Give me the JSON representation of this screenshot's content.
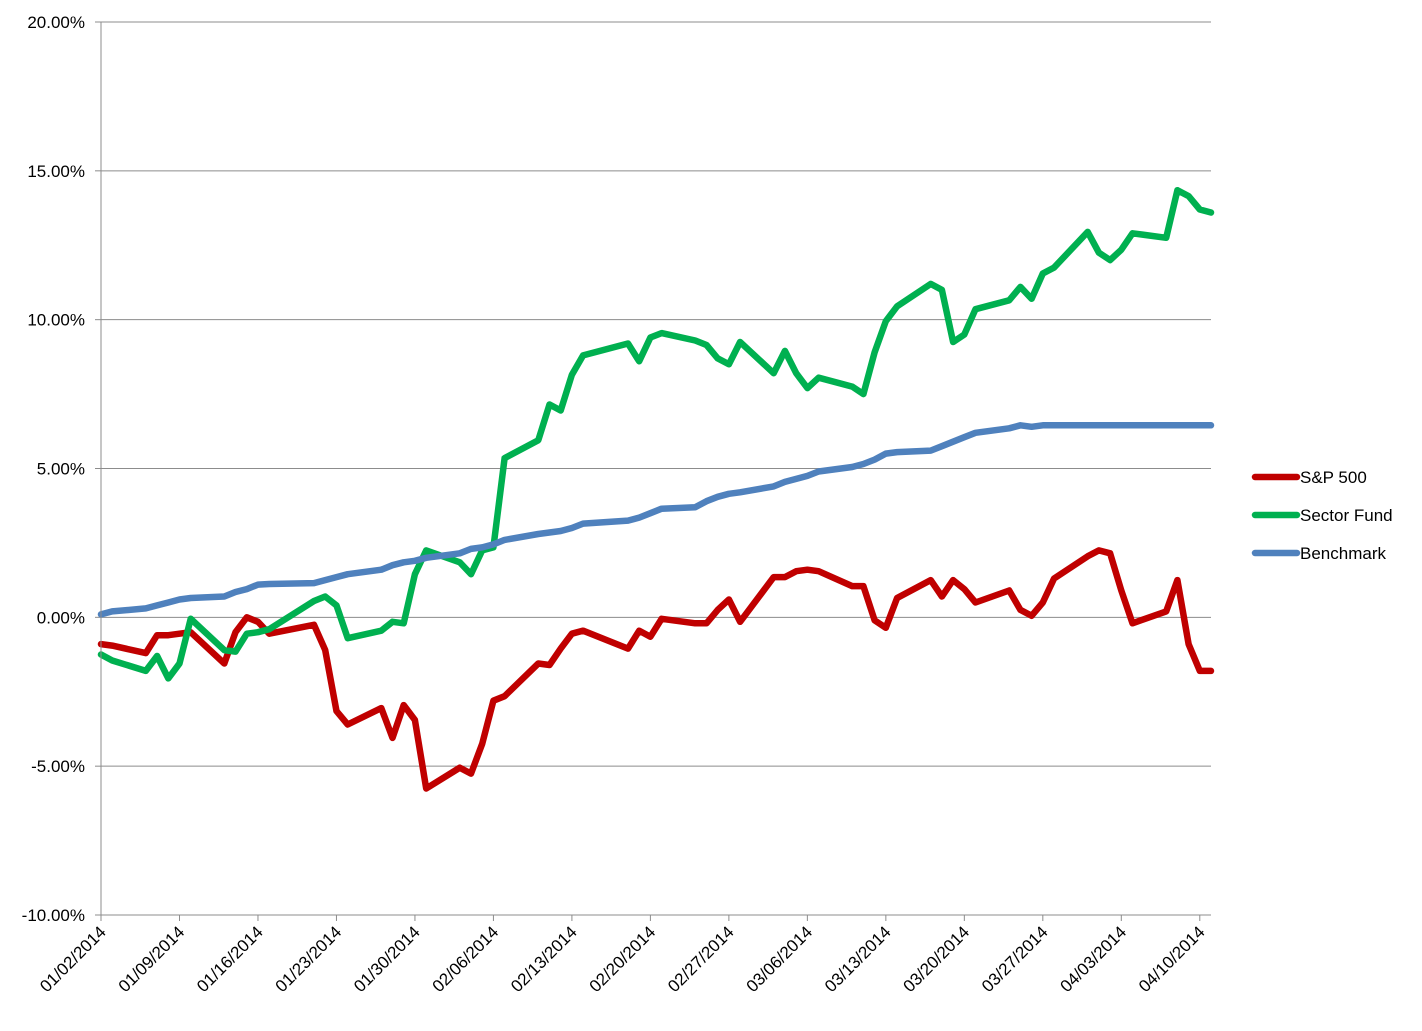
{
  "chart_data": {
    "type": "line",
    "title": "",
    "xlabel": "",
    "ylabel": "",
    "ylim": [
      -0.1,
      0.2
    ],
    "yticks": [
      -0.1,
      -0.05,
      0.0,
      0.05,
      0.1,
      0.15,
      0.2
    ],
    "ytick_labels": [
      "-10.00%",
      "-5.00%",
      "0.00%",
      "5.00%",
      "10.00%",
      "15.00%",
      "20.00%"
    ],
    "xlim": [
      "2014-01-02",
      "2014-04-11"
    ],
    "xtick_dates": [
      "2014-01-02",
      "2014-01-09",
      "2014-01-16",
      "2014-01-23",
      "2014-01-30",
      "2014-02-06",
      "2014-02-13",
      "2014-02-20",
      "2014-02-27",
      "2014-03-06",
      "2014-03-13",
      "2014-03-20",
      "2014-03-27",
      "2014-04-03",
      "2014-04-10"
    ],
    "xtick_labels": [
      "01/02/2014",
      "01/09/2014",
      "01/16/2014",
      "01/23/2014",
      "01/30/2014",
      "02/06/2014",
      "02/13/2014",
      "02/20/2014",
      "02/27/2014",
      "03/06/2014",
      "03/13/2014",
      "03/20/2014",
      "03/27/2014",
      "04/03/2014",
      "04/10/2014"
    ],
    "grid": "horizontal",
    "legend_position": "right",
    "dates": [
      "2014-01-02",
      "2014-01-03",
      "2014-01-06",
      "2014-01-07",
      "2014-01-08",
      "2014-01-09",
      "2014-01-10",
      "2014-01-13",
      "2014-01-14",
      "2014-01-15",
      "2014-01-16",
      "2014-01-17",
      "2014-01-21",
      "2014-01-22",
      "2014-01-23",
      "2014-01-24",
      "2014-01-27",
      "2014-01-28",
      "2014-01-29",
      "2014-01-30",
      "2014-01-31",
      "2014-02-03",
      "2014-02-04",
      "2014-02-05",
      "2014-02-06",
      "2014-02-07",
      "2014-02-10",
      "2014-02-11",
      "2014-02-12",
      "2014-02-13",
      "2014-02-14",
      "2014-02-18",
      "2014-02-19",
      "2014-02-20",
      "2014-02-21",
      "2014-02-24",
      "2014-02-25",
      "2014-02-26",
      "2014-02-27",
      "2014-02-28",
      "2014-03-03",
      "2014-03-04",
      "2014-03-05",
      "2014-03-06",
      "2014-03-07",
      "2014-03-10",
      "2014-03-11",
      "2014-03-12",
      "2014-03-13",
      "2014-03-14",
      "2014-03-17",
      "2014-03-18",
      "2014-03-19",
      "2014-03-20",
      "2014-03-21",
      "2014-03-24",
      "2014-03-25",
      "2014-03-26",
      "2014-03-27",
      "2014-03-28",
      "2014-03-31",
      "2014-04-01",
      "2014-04-02",
      "2014-04-03",
      "2014-04-04",
      "2014-04-07",
      "2014-04-08",
      "2014-04-09",
      "2014-04-10",
      "2014-04-11"
    ],
    "series": [
      {
        "name": "S&P 500",
        "color": "#c00000",
        "values": [
          -0.009,
          -0.0095,
          -0.012,
          -0.006,
          -0.006,
          -0.0055,
          -0.005,
          -0.0155,
          -0.005,
          0.0,
          -0.0015,
          -0.0055,
          -0.0025,
          -0.011,
          -0.0315,
          -0.036,
          -0.0305,
          -0.0405,
          -0.0295,
          -0.0345,
          -0.0575,
          -0.0505,
          -0.0525,
          -0.0425,
          -0.028,
          -0.0265,
          -0.0155,
          -0.016,
          -0.0105,
          -0.0055,
          -0.0045,
          -0.0105,
          -0.0045,
          -0.0065,
          -0.0005,
          -0.002,
          -0.002,
          0.0025,
          0.006,
          -0.0015,
          0.0135,
          0.0135,
          0.0155,
          0.016,
          0.0155,
          0.0105,
          0.0105,
          -0.001,
          -0.0035,
          0.0065,
          0.0125,
          0.007,
          0.0125,
          0.0095,
          0.005,
          0.009,
          0.0025,
          0.0005,
          0.005,
          0.013,
          0.0205,
          0.0225,
          0.0215,
          0.009,
          -0.002,
          0.002,
          0.0125,
          -0.009,
          -0.018,
          -0.018
        ]
      },
      {
        "name": "Sector Fund",
        "color": "#00b050",
        "values": [
          -0.0125,
          -0.0145,
          -0.018,
          -0.013,
          -0.0205,
          -0.0155,
          -0.0005,
          -0.011,
          -0.0115,
          -0.0055,
          -0.005,
          -0.004,
          0.0055,
          0.007,
          0.004,
          -0.007,
          -0.0045,
          -0.0015,
          -0.002,
          0.0145,
          0.0225,
          0.0185,
          0.0145,
          0.0225,
          0.0235,
          0.0535,
          0.0595,
          0.0715,
          0.0695,
          0.0815,
          0.088,
          0.092,
          0.086,
          0.094,
          0.0955,
          0.093,
          0.0915,
          0.087,
          0.085,
          0.0925,
          0.082,
          0.0895,
          0.082,
          0.077,
          0.0805,
          0.0775,
          0.075,
          0.089,
          0.0995,
          0.1045,
          0.112,
          0.11,
          0.0925,
          0.095,
          0.1035,
          0.1065,
          0.111,
          0.107,
          0.1155,
          0.1175,
          0.1295,
          0.1225,
          0.12,
          0.1235,
          0.129,
          0.1275,
          0.1435,
          0.1415,
          0.137,
          0.136
        ]
      },
      {
        "name": "Benchmark",
        "color": "#4f81bd",
        "values": [
          0.001,
          0.002,
          0.003,
          0.004,
          0.005,
          0.006,
          0.0065,
          0.007,
          0.0085,
          0.0095,
          0.011,
          0.0112,
          0.0115,
          0.0125,
          0.0135,
          0.0145,
          0.016,
          0.0175,
          0.0185,
          0.019,
          0.02,
          0.0215,
          0.023,
          0.0235,
          0.0245,
          0.026,
          0.028,
          0.0285,
          0.029,
          0.03,
          0.0315,
          0.0325,
          0.0335,
          0.035,
          0.0365,
          0.037,
          0.039,
          0.0405,
          0.0415,
          0.042,
          0.044,
          0.0455,
          0.0465,
          0.0475,
          0.049,
          0.0505,
          0.0515,
          0.053,
          0.055,
          0.0555,
          0.056,
          0.0575,
          0.059,
          0.0605,
          0.062,
          0.0635,
          0.0645,
          0.064,
          0.0645,
          0.0645,
          0.0645,
          0.0645,
          0.0645,
          0.0645,
          0.0645,
          0.0645,
          0.0645,
          0.0645,
          0.0645,
          0.0645
        ]
      }
    ]
  }
}
